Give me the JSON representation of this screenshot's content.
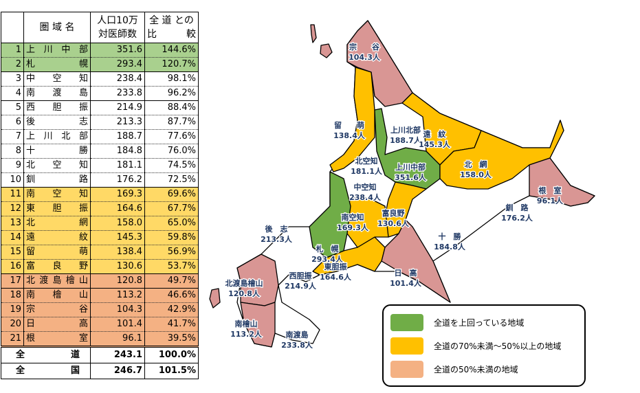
{
  "colors": {
    "above": "#70ad47",
    "mid": "#ffc000",
    "low": "#d99694",
    "row_above": "#a9d08e",
    "row_mid": "#ffd966",
    "row_low": "#f4b183",
    "label": "#1f3864"
  },
  "table": {
    "headers": {
      "name": "圏 域 名",
      "value_l1": "人口10万",
      "value_l2": "対医師数",
      "ratio_l1": "全 道 との",
      "ratio_l2_a": "比",
      "ratio_l2_b": "較"
    },
    "rows": [
      {
        "rank": "1",
        "name": [
          "上",
          "川",
          "中",
          "部"
        ],
        "value": "351.6",
        "ratio": "144.6%",
        "cat": "above"
      },
      {
        "rank": "2",
        "name": [
          "札",
          "幌"
        ],
        "value": "293.4",
        "ratio": "120.7%",
        "cat": "above"
      },
      {
        "rank": "3",
        "name": [
          "中",
          "空",
          "知"
        ],
        "value": "238.4",
        "ratio": "98.1%",
        "cat": "none"
      },
      {
        "rank": "4",
        "name": [
          "南",
          "渡",
          "島"
        ],
        "value": "233.8",
        "ratio": "96.2%",
        "cat": "none"
      },
      {
        "rank": "5",
        "name": [
          "西",
          "胆",
          "振"
        ],
        "value": "214.9",
        "ratio": "88.4%",
        "cat": "none"
      },
      {
        "rank": "6",
        "name": [
          "後",
          "志"
        ],
        "value": "213.3",
        "ratio": "87.7%",
        "cat": "none"
      },
      {
        "rank": "7",
        "name": [
          "上",
          "川",
          "北",
          "部"
        ],
        "value": "188.7",
        "ratio": "77.6%",
        "cat": "none"
      },
      {
        "rank": "8",
        "name": [
          "十",
          "勝"
        ],
        "value": "184.8",
        "ratio": "76.0%",
        "cat": "none"
      },
      {
        "rank": "9",
        "name": [
          "北",
          "空",
          "知"
        ],
        "value": "181.1",
        "ratio": "74.5%",
        "cat": "none"
      },
      {
        "rank": "10",
        "name": [
          "釧",
          "路"
        ],
        "value": "176.2",
        "ratio": "72.5%",
        "cat": "none"
      },
      {
        "rank": "11",
        "name": [
          "南",
          "空",
          "知"
        ],
        "value": "169.3",
        "ratio": "69.6%",
        "cat": "mid"
      },
      {
        "rank": "12",
        "name": [
          "東",
          "胆",
          "振"
        ],
        "value": "164.6",
        "ratio": "67.7%",
        "cat": "mid"
      },
      {
        "rank": "13",
        "name": [
          "北",
          "網"
        ],
        "value": "158.0",
        "ratio": "65.0%",
        "cat": "mid"
      },
      {
        "rank": "14",
        "name": [
          "遠",
          "紋"
        ],
        "value": "145.3",
        "ratio": "59.8%",
        "cat": "mid"
      },
      {
        "rank": "15",
        "name": [
          "留",
          "萌"
        ],
        "value": "138.4",
        "ratio": "56.9%",
        "cat": "mid"
      },
      {
        "rank": "16",
        "name": [
          "富",
          "良",
          "野"
        ],
        "value": "130.6",
        "ratio": "53.7%",
        "cat": "mid"
      },
      {
        "rank": "17",
        "name": [
          "北",
          "渡",
          "島",
          "檜",
          "山"
        ],
        "value": "120.8",
        "ratio": "49.7%",
        "cat": "low"
      },
      {
        "rank": "18",
        "name": [
          "南",
          "檜",
          "山"
        ],
        "value": "113.2",
        "ratio": "46.6%",
        "cat": "low"
      },
      {
        "rank": "19",
        "name": [
          "宗",
          "谷"
        ],
        "value": "104.3",
        "ratio": "42.9%",
        "cat": "low"
      },
      {
        "rank": "20",
        "name": [
          "日",
          "高"
        ],
        "value": "101.4",
        "ratio": "41.7%",
        "cat": "low"
      },
      {
        "rank": "21",
        "name": [
          "根",
          "室"
        ],
        "value": "96.1",
        "ratio": "39.5%",
        "cat": "low"
      }
    ],
    "totals": [
      {
        "name": [
          "全",
          "道"
        ],
        "value": "243.1",
        "ratio": "100.0%"
      },
      {
        "name": [
          "全",
          "国"
        ],
        "value": "246.7",
        "ratio": "101.5%"
      }
    ]
  },
  "map_labels": [
    {
      "name": "宗　　谷",
      "value": "104.3人"
    },
    {
      "name": "留　　萌",
      "value": "138.4人"
    },
    {
      "name": "上川北部",
      "value": "188.7人"
    },
    {
      "name": "遠　紋",
      "value": "145.3人"
    },
    {
      "name": "北空知",
      "value": "181.1人"
    },
    {
      "name": "上川中部",
      "value": "351.6人"
    },
    {
      "name": "北　網",
      "value": "158.0人"
    },
    {
      "name": "根　室",
      "value": "96.1人"
    },
    {
      "name": "中空知",
      "value": "238.4人"
    },
    {
      "name": "富良野",
      "value": "130.6人"
    },
    {
      "name": "南空知",
      "value": "169.3人"
    },
    {
      "name": "釧　路",
      "value": "176.2人"
    },
    {
      "name": "後　志",
      "value": "213.3人"
    },
    {
      "name": "十　勝",
      "value": "184.8人"
    },
    {
      "name": "札　幌",
      "value": "293.4人"
    },
    {
      "name": "東胆振",
      "value": "164.6人"
    },
    {
      "name": "西胆振",
      "value": "214.9人"
    },
    {
      "name": "日　高",
      "value": "101.4人"
    },
    {
      "name": "北渡島檜山",
      "value": "120.8人"
    },
    {
      "name": "南檜山",
      "value": "113.2人"
    },
    {
      "name": "南渡島",
      "value": "233.8人"
    }
  ],
  "legend": [
    {
      "label": "全道を上回っている地域",
      "cat": "above"
    },
    {
      "label": "全道の70%未満～50%以上の地域",
      "cat": "mid"
    },
    {
      "label": "全道の50%未満の地域",
      "cat": "low"
    }
  ]
}
